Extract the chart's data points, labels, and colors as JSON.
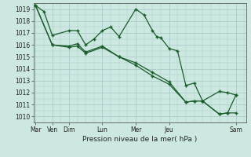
{
  "bg_color": "#cce8e0",
  "grid_color": "#aacccc",
  "line_color": "#1a5c2a",
  "marker_color": "#1a5c2a",
  "xlabel": "Pression niveau de la mer( hPa )",
  "ylim": [
    1009.5,
    1019.5
  ],
  "yticks": [
    1010,
    1011,
    1012,
    1013,
    1014,
    1015,
    1016,
    1017,
    1018,
    1019
  ],
  "xlim": [
    -0.1,
    12.6
  ],
  "xtick_positions": [
    0,
    1,
    2,
    4,
    6,
    8,
    12
  ],
  "xtick_labels": [
    "Mar",
    "Ven",
    "Dim",
    "Lun",
    "Mer",
    "Jeu",
    "Sam"
  ],
  "series1_x": [
    0,
    0.5,
    1,
    2,
    2.5,
    3,
    3.5,
    4,
    4.5,
    5,
    6,
    6.5,
    7,
    7.25,
    7.5,
    8,
    8.5,
    9,
    9.5,
    10,
    11,
    11.5,
    12
  ],
  "series1_y": [
    1019.3,
    1018.8,
    1016.8,
    1017.2,
    1017.2,
    1016.0,
    1016.5,
    1017.2,
    1017.5,
    1016.7,
    1019.0,
    1018.5,
    1017.2,
    1016.7,
    1016.6,
    1015.7,
    1015.5,
    1012.6,
    1012.8,
    1011.3,
    1012.1,
    1012.0,
    1011.8
  ],
  "series2_x": [
    0,
    1,
    2,
    2.5,
    3,
    4,
    5,
    6,
    7,
    8,
    9,
    9.5,
    10,
    11,
    11.5,
    12
  ],
  "series2_y": [
    1019.3,
    1016.0,
    1015.9,
    1016.1,
    1015.4,
    1015.9,
    1015.0,
    1014.5,
    1013.7,
    1012.9,
    1011.2,
    1011.3,
    1011.3,
    1010.2,
    1010.3,
    1010.3
  ],
  "series3_x": [
    0,
    1,
    2,
    2.5,
    3,
    4,
    5,
    6,
    7,
    8,
    9,
    9.5,
    10,
    11,
    11.5,
    12
  ],
  "series3_y": [
    1019.3,
    1016.0,
    1015.8,
    1015.9,
    1015.3,
    1015.8,
    1015.0,
    1014.3,
    1013.4,
    1012.7,
    1011.2,
    1011.3,
    1011.3,
    1010.2,
    1010.3,
    1011.8
  ]
}
